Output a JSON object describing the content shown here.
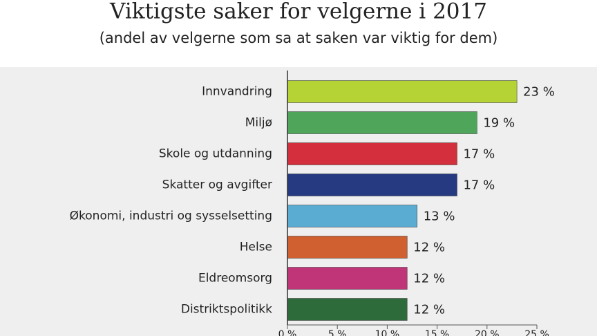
{
  "chart_data": {
    "type": "bar",
    "orientation": "horizontal",
    "title": "Viktigste saker for velgerne i 2017",
    "subtitle": "(andel av velgerne som sa at saken var viktig for dem)",
    "categories": [
      "Innvandring",
      "Miljø",
      "Skole og utdanning",
      "Skatter og avgifter",
      "Økonomi, industri og sysselsetting",
      "Helse",
      "Eldreomsorg",
      "Distriktspolitikk"
    ],
    "values": [
      23,
      19,
      17,
      17,
      13,
      12,
      12,
      12
    ],
    "value_labels": [
      "23 %",
      "19 %",
      "17 %",
      "17 %",
      "13 %",
      "12 %",
      "12 %",
      "12 %"
    ],
    "colors": [
      "#b5d334",
      "#4fa55a",
      "#d42f3c",
      "#253a80",
      "#5aacd2",
      "#d0602f",
      "#c03577",
      "#2e6b3a"
    ],
    "xlim": [
      0,
      25
    ],
    "xticks": [
      {
        "value": 0,
        "label": "0 %"
      },
      {
        "value": 5,
        "label": "5 %"
      },
      {
        "value": 10,
        "label": "10 %"
      },
      {
        "value": 15,
        "label": "15 %"
      },
      {
        "value": 20,
        "label": "20 %"
      },
      {
        "value": 25,
        "label": "25 %"
      }
    ]
  }
}
